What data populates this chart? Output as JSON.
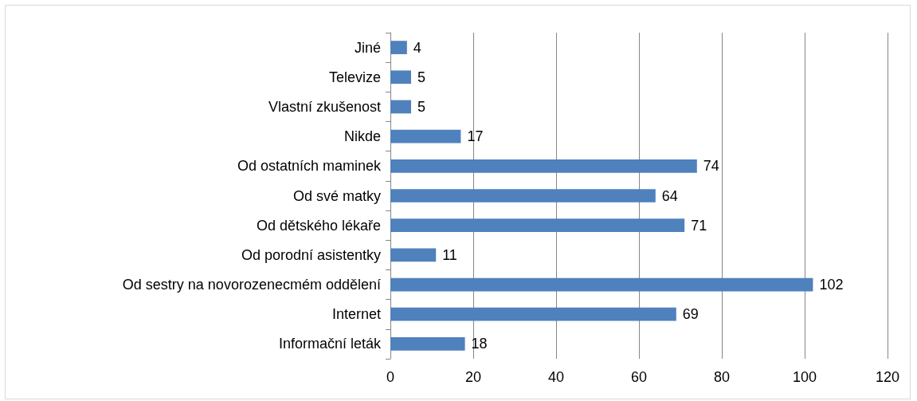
{
  "chart_data": {
    "type": "bar",
    "orientation": "horizontal",
    "categories": [
      "Jiné",
      "Televize",
      "Vlastní zkušenost",
      "Nikde",
      "Od ostatních maminek",
      "Od své matky",
      "Od dětského lékaře",
      "Od porodní asistentky",
      "Od sestry na novorozenecmém oddělení",
      "Internet",
      "Informační leták"
    ],
    "values": [
      4,
      5,
      5,
      17,
      74,
      64,
      71,
      11,
      102,
      69,
      18
    ],
    "color": "#4f81bd",
    "xlim": [
      0,
      120
    ],
    "xticks": [
      0,
      20,
      40,
      60,
      80,
      100,
      120
    ],
    "grid": "x",
    "data_labels": true
  }
}
